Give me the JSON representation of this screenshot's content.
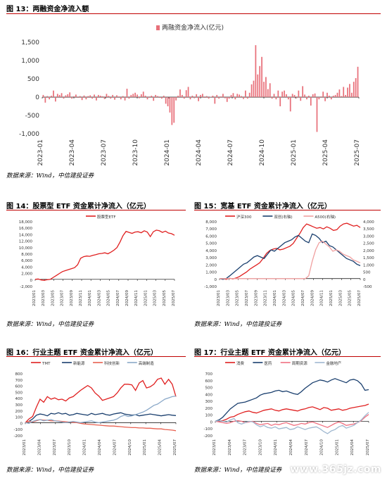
{
  "charts": {
    "c13": {
      "title": "图 13：两融资金净流入额",
      "source": "数据来源：Wind，中信建投证券"
    },
    "c14": {
      "title": "图 14：股票型 ETF 资金累计净流入（亿元）",
      "source": "数据来源：Wind，中信建投证券"
    },
    "c15": {
      "title": "图 15：宽基 ETF 资金累计净流入（亿元）",
      "source": "数据来源：Wind，中信建投证券"
    },
    "c16": {
      "title": "图 16：行业主题 ETF 资金累计净流入（亿元）",
      "source": "数据来源：Wind，中信建投证券"
    },
    "c17": {
      "title": "图 17：行业主题 ETF 资金累计净流入（亿元）",
      "source": "数据来源：Wind，中信建投证券"
    }
  },
  "watermark": "www.365jz.com",
  "chart_data": [
    {
      "type": "bar",
      "title": "图 13：两融资金净流入额",
      "ylim": [
        -1000,
        1500
      ],
      "yticks": [
        -1000,
        -500,
        0,
        500,
        1000,
        1500
      ],
      "xticks": [
        "2023-01",
        "2023-04",
        "2023-07",
        "2023-10",
        "2024-01",
        "2024-04",
        "2024-07",
        "2024-10",
        "2025-01",
        "2025-04",
        "2025-07"
      ],
      "legend": "top-center",
      "series": [
        {
          "name": "两融资金净流入(亿元)",
          "color": "#e8707a",
          "values": [
            60,
            -150,
            30,
            -60,
            40,
            180,
            -120,
            90,
            60,
            110,
            -40,
            50,
            80,
            130,
            -40,
            25,
            70,
            -20,
            30,
            -80,
            45,
            -60,
            30,
            50,
            -40,
            70,
            -90,
            60,
            40,
            25,
            -50,
            90,
            35,
            -40,
            60,
            -70,
            50,
            20,
            -60,
            30,
            -90,
            230,
            -40,
            60,
            90,
            120,
            70,
            -30,
            80,
            150,
            40,
            -60,
            20,
            40,
            -100,
            60,
            30,
            -20,
            -40,
            40,
            -180,
            -250,
            -420,
            -760,
            -700,
            -90,
            40,
            210,
            60,
            -40,
            190,
            280,
            -60,
            40,
            -30,
            80,
            -110,
            60,
            90,
            -20,
            30,
            -40,
            10,
            40,
            -180,
            60,
            -40,
            20,
            90,
            -30,
            -130,
            -40,
            60,
            110,
            -60,
            90,
            70,
            30,
            -50,
            180,
            -40,
            120,
            350,
            450,
            1420,
            620,
            850,
            1100,
            420,
            550,
            220,
            380,
            -40,
            90,
            -60,
            180,
            -250,
            150,
            180,
            80,
            -60,
            -390,
            90,
            60,
            -30,
            180,
            -100,
            300,
            70,
            -60,
            40,
            -230,
            80,
            100,
            -950,
            -60,
            20,
            150,
            -110,
            120,
            40,
            -60,
            40,
            60,
            120,
            210,
            30,
            280,
            60,
            260,
            360,
            120,
            420,
            520,
            830
          ]
        }
      ]
    },
    {
      "type": "line",
      "title": "图 14：股票型 ETF 资金累计净流入（亿元）",
      "ylim": [
        -2000,
        18000
      ],
      "yticks": [
        -2000,
        0,
        2000,
        4000,
        6000,
        8000,
        10000,
        12000,
        14000,
        16000,
        18000
      ],
      "xticks": [
        "2023/01",
        "2023/03",
        "2023/05",
        "2023/07",
        "2023/09",
        "2023/11",
        "2024/01",
        "2024/03",
        "2024/05",
        "2024/07",
        "2024/09",
        "2024/11",
        "2025/01",
        "2025/03",
        "2025/05",
        "2025/07"
      ],
      "series": [
        {
          "name": "股票型ETF",
          "color": "#e02020",
          "values": [
            0,
            100,
            -200,
            -300,
            -100,
            0,
            600,
            1200,
            1800,
            2400,
            2700,
            3000,
            3300,
            3600,
            4500,
            6500,
            7000,
            7200,
            7100,
            7400,
            7600,
            7900,
            8000,
            8200,
            7900,
            8400,
            9000,
            9800,
            11500,
            13500,
            14800,
            14500,
            14200,
            14600,
            14700,
            14400,
            15000,
            14600,
            13200,
            14700,
            15200,
            15000,
            14500,
            14900,
            14300,
            14100,
            13600
          ]
        }
      ]
    },
    {
      "type": "line",
      "title": "图 15：宽基 ETF 资金累计净流入（亿元）",
      "ylim": [
        -1000,
        8000
      ],
      "yticks": [
        -1000,
        0,
        1000,
        2000,
        3000,
        4000,
        5000,
        6000,
        7000,
        8000
      ],
      "y2lim": [
        -500,
        4000
      ],
      "y2ticks": [
        -500,
        0,
        500,
        1000,
        1500,
        2000,
        2500,
        3000,
        3500,
        4000
      ],
      "xticks": [
        "2023/01",
        "2023/03",
        "2023/05",
        "2023/07",
        "2023/09",
        "2023/11",
        "2024/01",
        "2024/03",
        "2024/05",
        "2024/07",
        "2024/09",
        "2024/11",
        "2025/01",
        "2025/03",
        "2025/05",
        "2025/07"
      ],
      "series": [
        {
          "name": "沪深300",
          "color": "#e02020",
          "axis": "left",
          "values": [
            0,
            0,
            -100,
            50,
            -50,
            100,
            300,
            600,
            900,
            1300,
            1600,
            1900,
            2200,
            2800,
            3500,
            3900,
            4100,
            4200,
            4000,
            4100,
            4300,
            4500,
            4900,
            5600,
            6300,
            7100,
            7600,
            7400,
            7200,
            7000,
            7100,
            6900,
            7200,
            7000,
            6700,
            6800,
            7300,
            7600,
            7700,
            7500,
            7300,
            7400,
            7100
          ]
        },
        {
          "name": "双创(右轴)",
          "color": "#1a3f6e",
          "axis": "right",
          "values": [
            0,
            -50,
            20,
            200,
            400,
            600,
            800,
            1000,
            1100,
            1300,
            1500,
            1600,
            1500,
            1400,
            1700,
            2000,
            1900,
            2100,
            2300,
            2500,
            2600,
            2700,
            2900,
            3000,
            2800,
            2600,
            2500,
            3100,
            3000,
            2800,
            2500,
            2600,
            2300,
            2200,
            2000,
            1800,
            1600,
            1400,
            1300,
            1200,
            1000,
            900
          ]
        },
        {
          "name": "A500(右轴)",
          "color": "#f0a0a0",
          "axis": "right",
          "values": [
            0,
            0,
            0,
            0,
            0,
            0,
            0,
            0,
            0,
            0,
            0,
            0,
            0,
            0,
            0,
            0,
            0,
            0,
            0,
            0,
            0,
            0,
            0,
            0,
            0,
            0,
            200,
            1200,
            2000,
            2500,
            2600,
            2400,
            2200,
            1900,
            2000,
            1900,
            1700,
            1600,
            1500,
            1300,
            1200,
            1100
          ]
        }
      ]
    },
    {
      "type": "line",
      "title": "图 16：行业主题 ETF 资金累计净流入（亿元）",
      "ylim": [
        -200,
        800
      ],
      "yticks": [
        -200,
        -100,
        0,
        100,
        200,
        300,
        400,
        500,
        600,
        700,
        800
      ],
      "xticks": [
        "2023/01",
        "2023/04",
        "2023/07",
        "2023/10",
        "2024/01",
        "2024/04",
        "2024/07",
        "2024/10",
        "2025/01",
        "2025/04",
        "2025/07"
      ],
      "series": [
        {
          "name": "TMT",
          "color": "#e02020",
          "values": [
            0,
            60,
            100,
            250,
            380,
            330,
            420,
            380,
            400,
            370,
            380,
            350,
            400,
            420,
            470,
            520,
            560,
            600,
            560,
            480,
            430,
            360,
            380,
            400,
            420,
            480,
            560,
            620,
            620,
            610,
            520,
            640,
            680,
            560,
            580,
            620,
            700,
            720,
            620,
            700,
            620,
            420
          ]
        },
        {
          "name": "新能源",
          "color": "#1a3f6e",
          "values": [
            0,
            20,
            60,
            120,
            140,
            130,
            110,
            150,
            140,
            160,
            140,
            150,
            120,
            130,
            150,
            140,
            130,
            120,
            150,
            130,
            140,
            150,
            130,
            120,
            140,
            150,
            160,
            140,
            130,
            120,
            130,
            110,
            120,
            130,
            140,
            130,
            120,
            110,
            120,
            130,
            120,
            115
          ]
        },
        {
          "name": "科技创新",
          "color": "#e86050",
          "values": [
            0,
            20,
            10,
            30,
            50,
            40,
            40,
            30,
            30,
            25,
            20,
            15,
            10,
            5,
            0,
            -10,
            -20,
            -25,
            -30,
            -35,
            -40,
            -45,
            -50,
            -55,
            -55,
            -60,
            -65,
            -70,
            -75,
            -80,
            -80,
            -85,
            -85,
            -90,
            -90,
            -95,
            -100,
            -100,
            -110,
            -115,
            -120,
            -130
          ]
        },
        {
          "name": "高端制造",
          "color": "#8aa8c8",
          "values": [
            0,
            -10,
            20,
            40,
            50,
            30,
            40,
            50,
            30,
            20,
            10,
            0,
            10,
            20,
            10,
            0,
            10,
            20,
            30,
            10,
            0,
            10,
            20,
            30,
            40,
            60,
            100,
            120,
            100,
            110,
            130,
            150,
            170,
            200,
            240,
            280,
            300,
            340,
            380,
            400,
            420,
            430
          ]
        }
      ]
    },
    {
      "type": "line",
      "title": "图 17：行业主题 ETF 资金累计净流入（亿元）",
      "ylim": [
        -200,
        700
      ],
      "yticks": [
        -200,
        -100,
        0,
        100,
        200,
        300,
        400,
        500,
        600,
        700
      ],
      "xticks": [
        "2023/01",
        "2023/04",
        "2023/07",
        "2023/10",
        "2024/01",
        "2024/04",
        "2024/07",
        "2024/10",
        "2025/01",
        "2025/04",
        "2025/07"
      ],
      "series": [
        {
          "name": "消费",
          "color": "#e02020",
          "values": [
            0,
            5,
            10,
            30,
            60,
            70,
            100,
            120,
            140,
            150,
            130,
            120,
            140,
            160,
            170,
            180,
            160,
            150,
            170,
            180,
            170,
            160,
            150,
            170,
            180,
            200,
            210,
            190,
            170,
            200,
            190,
            160,
            170,
            180,
            160,
            170,
            190,
            200,
            210,
            220,
            230,
            250
          ]
        },
        {
          "name": "医药",
          "color": "#1a3f6e",
          "values": [
            0,
            20,
            60,
            120,
            180,
            220,
            260,
            270,
            280,
            300,
            320,
            340,
            380,
            400,
            410,
            420,
            440,
            450,
            430,
            440,
            420,
            400,
            390,
            430,
            480,
            520,
            560,
            580,
            600,
            590,
            570,
            600,
            620,
            600,
            580,
            560,
            600,
            610,
            590,
            540,
            450,
            460
          ]
        },
        {
          "name": "周期资源",
          "color": "#f07080",
          "values": [
            0,
            -10,
            -20,
            -30,
            -20,
            0,
            10,
            0,
            -20,
            -10,
            0,
            -30,
            -50,
            -40,
            -30,
            -60,
            -40,
            -50,
            -30,
            -20,
            -40,
            -60,
            -50,
            -30,
            -40,
            -20,
            -10,
            -30,
            -50,
            -70,
            -90,
            -60,
            -30,
            -10,
            -30,
            -60,
            -50,
            -40,
            -20,
            10,
            60,
            100
          ]
        },
        {
          "name": "金融地产",
          "color": "#a0b8d0",
          "values": [
            0,
            10,
            0,
            -10,
            20,
            40,
            -20,
            -40,
            -20,
            0,
            -10,
            -50,
            -80,
            -60,
            -90,
            -100,
            -80,
            -110,
            -100,
            -90,
            -120,
            -110,
            -80,
            -100,
            -120,
            -100,
            -90,
            -80,
            -110,
            -150,
            -180,
            -140,
            -120,
            -80,
            -60,
            -100,
            -80,
            -60,
            -20,
            20,
            80,
            130
          ]
        }
      ]
    }
  ]
}
